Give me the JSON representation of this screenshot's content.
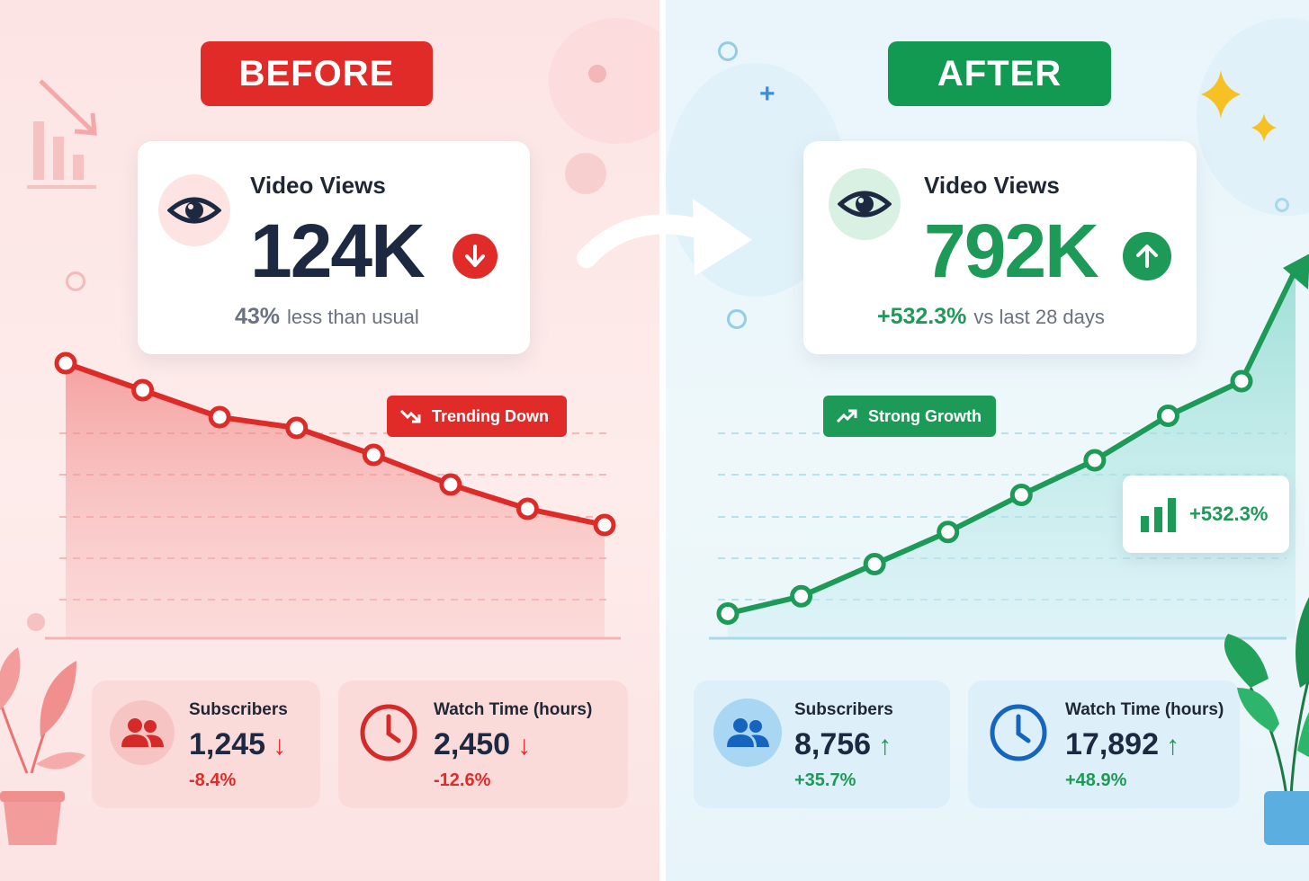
{
  "before": {
    "tag": "BEFORE",
    "card": {
      "title": "Video Views",
      "value": "124K",
      "trend": "down",
      "sub_strong": "43%",
      "sub_text": "less than usual"
    },
    "badge": "Trending Down",
    "stats": [
      {
        "label": "Subscribers",
        "value": "1,245",
        "change": "-8.4%",
        "trend": "down",
        "icon": "people-icon"
      },
      {
        "label": "Watch Time (hours)",
        "value": "2,450",
        "change": "-12.6%",
        "trend": "down",
        "icon": "clock-icon"
      }
    ],
    "colors": {
      "accent": "#e02b28",
      "background": "#fde4e4",
      "stat_card": "#fbdada"
    }
  },
  "after": {
    "tag": "AFTER",
    "card": {
      "title": "Video Views",
      "value": "792K",
      "trend": "up",
      "sub_strong": "+532.3%",
      "sub_text": "vs last 28 days"
    },
    "badge": "Strong Growth",
    "chip": "+532.3%",
    "stats": [
      {
        "label": "Subscribers",
        "value": "8,756",
        "change": "+35.7%",
        "trend": "up",
        "icon": "people-icon"
      },
      {
        "label": "Watch Time (hours)",
        "value": "17,892",
        "change": "+48.9%",
        "trend": "up",
        "icon": "clock-icon"
      }
    ],
    "colors": {
      "accent": "#1d9a57",
      "background": "#e9f5fb",
      "stat_card": "#ddeff9",
      "clock": "#1565c0"
    }
  },
  "chart_data": [
    {
      "type": "line",
      "series": [
        {
          "values": [
            100,
            90,
            80,
            76,
            66,
            55,
            46,
            40
          ]
        }
      ],
      "ylim": [
        0,
        100
      ],
      "grid": true
    },
    {
      "type": "line",
      "series": [
        {
          "values": [
            10,
            17,
            30,
            43,
            58,
            72,
            90,
            104
          ]
        }
      ],
      "ylim": [
        0,
        120
      ],
      "grid": true
    }
  ]
}
